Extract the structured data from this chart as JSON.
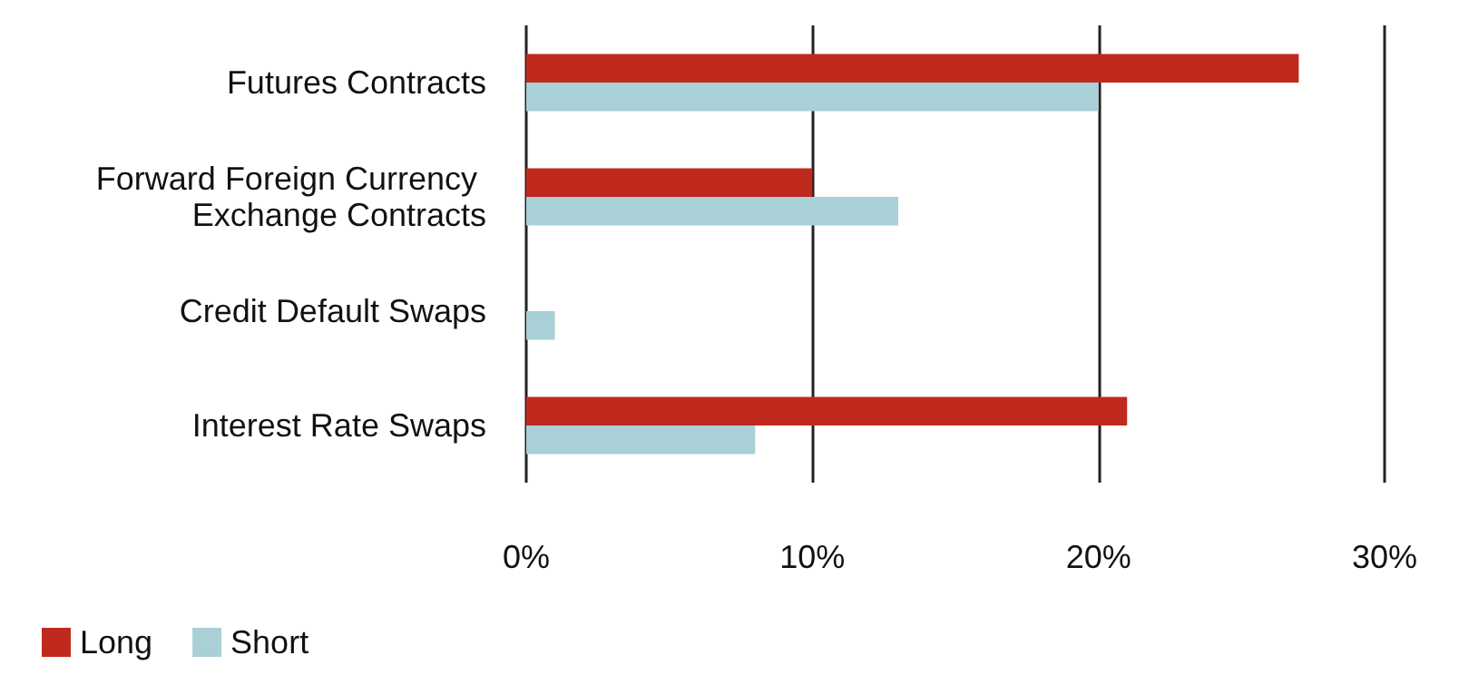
{
  "chart_data": {
    "type": "bar",
    "orientation": "horizontal",
    "categories": [
      "Futures Contracts",
      "Forward Foreign Currency Exchange Contracts",
      "Credit Default Swaps",
      "Interest Rate Swaps"
    ],
    "series": [
      {
        "name": "Long",
        "color": "#c0291e",
        "values": [
          27,
          10,
          0,
          21
        ]
      },
      {
        "name": "Short",
        "color": "#a8d0d6",
        "values": [
          20,
          13,
          1,
          8
        ]
      }
    ],
    "xlim": [
      0,
      30
    ],
    "xticks": [
      {
        "value": 0,
        "label": "0%"
      },
      {
        "value": 10,
        "label": "10%"
      },
      {
        "value": 20,
        "label": "20%"
      },
      {
        "value": 30,
        "label": "30%"
      }
    ],
    "grid": "x",
    "legend": "bottom left"
  }
}
